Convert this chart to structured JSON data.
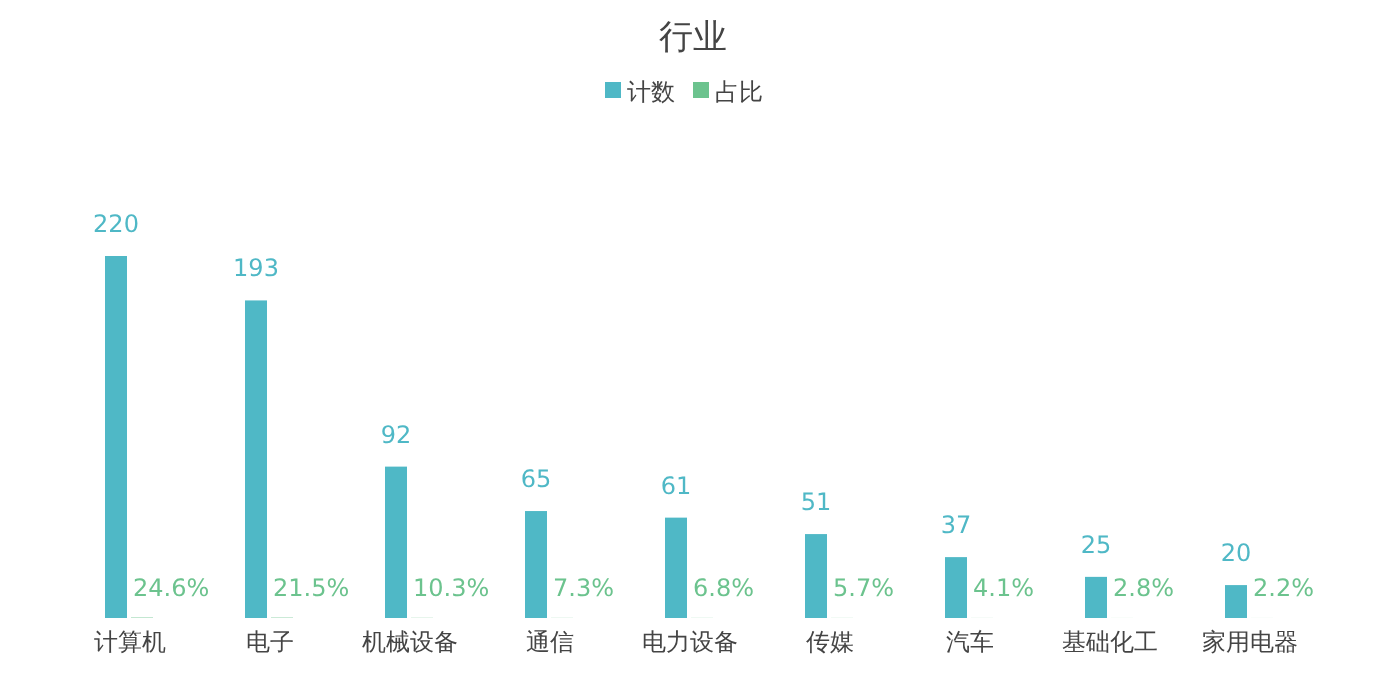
{
  "chart_data": {
    "type": "bar",
    "title": "行业",
    "categories": [
      "计算机",
      "电子",
      "机械设备",
      "通信",
      "电力设备",
      "传媒",
      "汽车",
      "基础化工",
      "家用电器"
    ],
    "series": [
      {
        "name": "计数",
        "color": "#4fb8c6",
        "values": [
          220,
          193,
          92,
          65,
          61,
          51,
          37,
          25,
          20
        ]
      },
      {
        "name": "占比",
        "color": "#6cc38e",
        "values": [
          0.246,
          0.215,
          0.103,
          0.073,
          0.068,
          0.057,
          0.041,
          0.028,
          0.022
        ],
        "value_labels": [
          "24.6%",
          "21.5%",
          "10.3%",
          "7.3%",
          "6.8%",
          "5.7%",
          "4.1%",
          "2.8%",
          "2.2%"
        ]
      }
    ],
    "data_labels": true,
    "legend": "top",
    "grid": false
  }
}
